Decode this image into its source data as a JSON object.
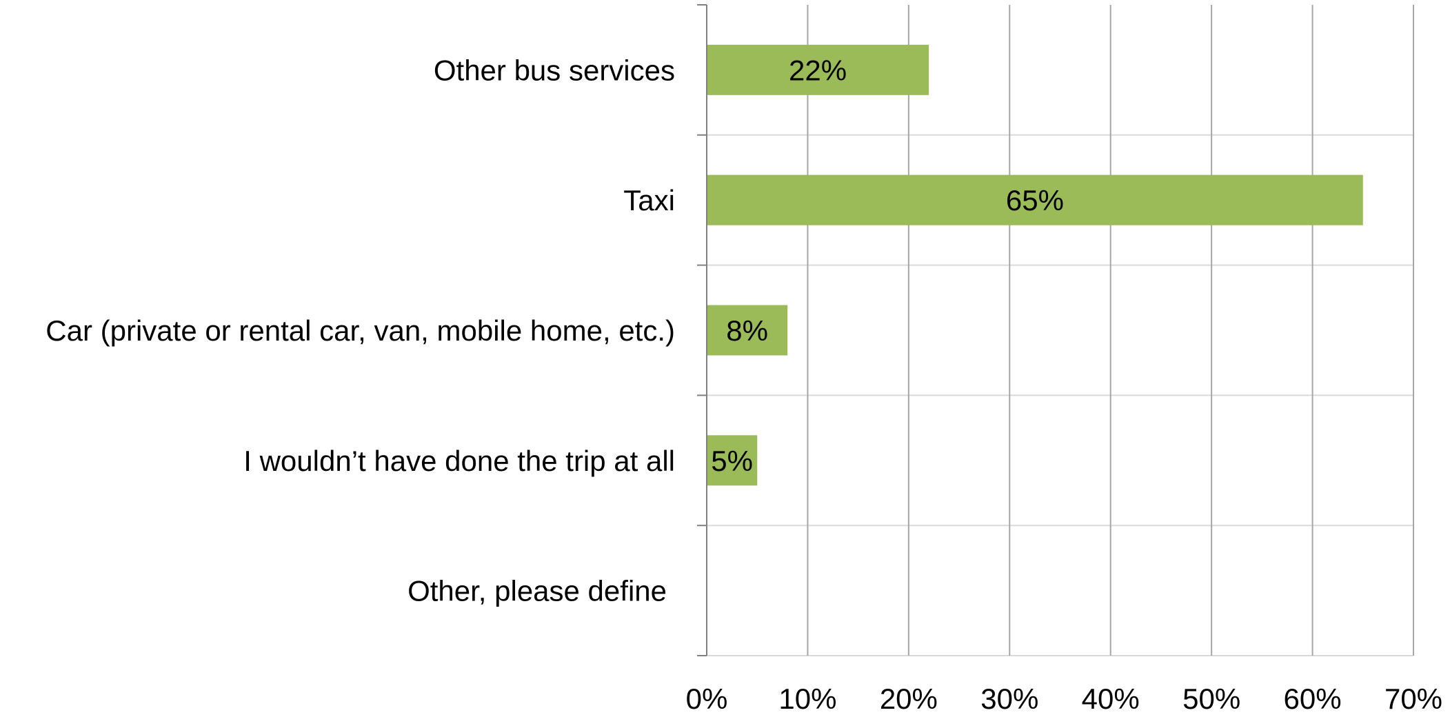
{
  "chart_data": {
    "type": "bar",
    "orientation": "horizontal",
    "categories": [
      "Other bus services",
      "Taxi",
      "Car (private or rental car, van, mobile home, etc.)",
      "I wouldn’t have done the trip at all",
      "Other, please define"
    ],
    "values": [
      22,
      65,
      8,
      5,
      null
    ],
    "data_labels": [
      "22%",
      "65%",
      "8%",
      "5%",
      ""
    ],
    "x_ticks": [
      "0%",
      "10%",
      "20%",
      "30%",
      "40%",
      "50%",
      "60%",
      "70%"
    ],
    "xlim": [
      0,
      70
    ],
    "title": "",
    "xlabel": "",
    "ylabel": "",
    "grid": true,
    "legend": "none",
    "colors": {
      "bar": "#9bbb59",
      "vertical_grid": "#a6a6a6",
      "horizontal_grid": "#d9d9d9",
      "axis": "#808080"
    }
  }
}
